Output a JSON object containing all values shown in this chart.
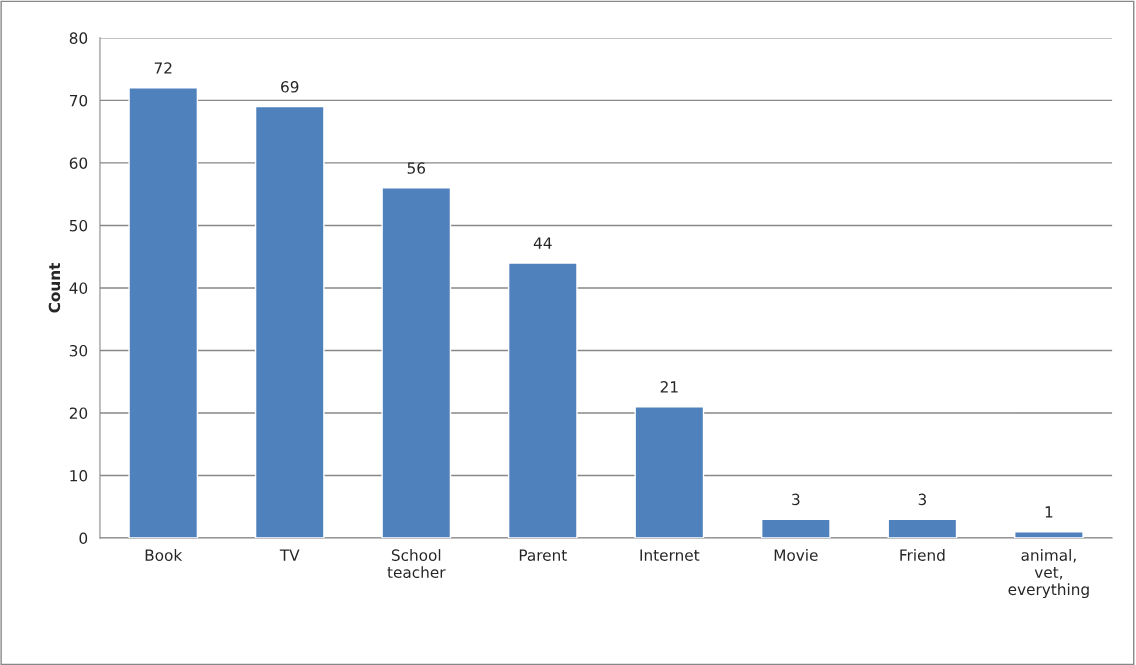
{
  "chart_data": {
    "type": "bar",
    "ylabel": "Count",
    "categories": [
      "Book",
      "TV",
      "School\nteacher",
      "Parent",
      "Internet",
      "Movie",
      "Friend",
      "animal,\nvet,\neverything"
    ],
    "values": [
      72,
      69,
      56,
      44,
      21,
      3,
      3,
      1
    ],
    "color": "#4f81bd",
    "ylim": [
      0,
      80
    ],
    "yticks": [
      0,
      10,
      20,
      30,
      40,
      50,
      60,
      70,
      80
    ],
    "grid": "y",
    "data_labels": true
  }
}
